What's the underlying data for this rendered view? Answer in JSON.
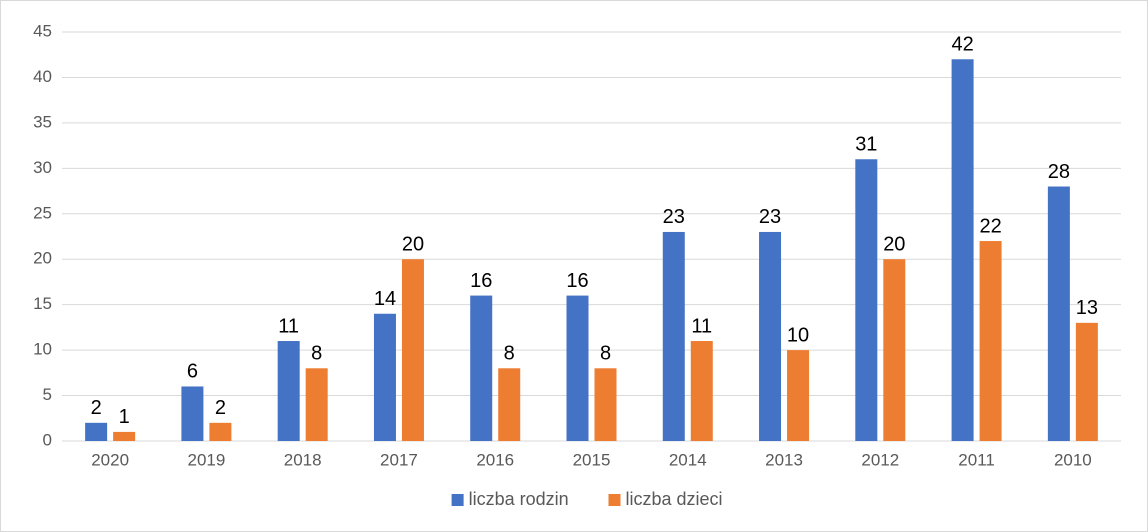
{
  "chart_data": {
    "type": "bar",
    "categories": [
      "2020",
      "2019",
      "2018",
      "2017",
      "2016",
      "2015",
      "2014",
      "2013",
      "2012",
      "2011",
      "2010"
    ],
    "series": [
      {
        "name": "liczba rodzin",
        "color": "#4472c4",
        "values": [
          2,
          6,
          11,
          14,
          16,
          16,
          23,
          23,
          31,
          42,
          28
        ]
      },
      {
        "name": "liczba dzieci",
        "color": "#ed7d31",
        "values": [
          1,
          2,
          8,
          20,
          8,
          8,
          11,
          10,
          20,
          22,
          13
        ]
      }
    ],
    "ylim": [
      0,
      45
    ],
    "yticks": [
      0,
      5,
      10,
      15,
      20,
      25,
      30,
      35,
      40,
      45
    ],
    "grid": true,
    "legend": "bottom",
    "data_labels": true
  }
}
